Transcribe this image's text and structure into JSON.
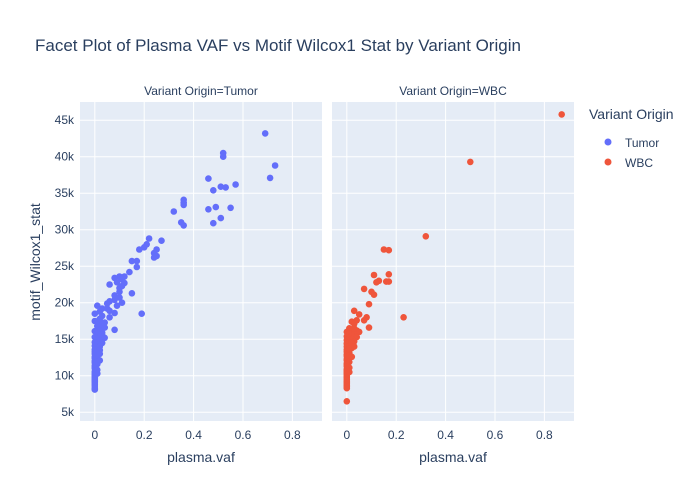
{
  "chart_data": {
    "type": "scatter",
    "title": "Facet Plot of Plasma VAF vs Motif Wilcox1 Stat by Variant Origin",
    "xlabel": "plasma.vaf",
    "ylabel": "motif_Wilcox1_stat",
    "xlim": [
      -0.06,
      0.92
    ],
    "ylim": [
      3800,
      47500
    ],
    "x_ticks": [
      0,
      0.2,
      0.4,
      0.6,
      0.8
    ],
    "x_tick_labels": [
      "0",
      "0.2",
      "0.4",
      "0.6",
      "0.8"
    ],
    "y_ticks": [
      5000,
      10000,
      15000,
      20000,
      25000,
      30000,
      35000,
      40000,
      45000
    ],
    "y_tick_labels": [
      "5k",
      "10k",
      "15k",
      "20k",
      "25k",
      "30k",
      "35k",
      "40k",
      "45k"
    ],
    "grid": true,
    "legend": {
      "title": "Variant Origin",
      "placement": "top-right"
    },
    "colors": {
      "Tumor": "#636efa",
      "WBC": "#ef553b",
      "plot_bg": "#e5ecf6",
      "grid": "#ffffff"
    },
    "facets": [
      {
        "label": "Variant Origin=Tumor",
        "series": [
          {
            "name": "Tumor",
            "points": [
              [
                0.69,
                43200
              ],
              [
                0.73,
                38800
              ],
              [
                0.71,
                37100
              ],
              [
                0.52,
                40500
              ],
              [
                0.52,
                40000
              ],
              [
                0.46,
                37000
              ],
              [
                0.51,
                35900
              ],
              [
                0.53,
                35800
              ],
              [
                0.48,
                35400
              ],
              [
                0.57,
                36200
              ],
              [
                0.36,
                34100
              ],
              [
                0.36,
                33700
              ],
              [
                0.36,
                33400
              ],
              [
                0.32,
                32500
              ],
              [
                0.46,
                32800
              ],
              [
                0.49,
                33100
              ],
              [
                0.55,
                33000
              ],
              [
                0.51,
                31600
              ],
              [
                0.48,
                30900
              ],
              [
                0.35,
                31000
              ],
              [
                0.36,
                30600
              ],
              [
                0.27,
                28500
              ],
              [
                0.22,
                28800
              ],
              [
                0.21,
                28000
              ],
              [
                0.25,
                27300
              ],
              [
                0.2,
                27600
              ],
              [
                0.18,
                27300
              ],
              [
                0.24,
                26800
              ],
              [
                0.25,
                26400
              ],
              [
                0.24,
                26200
              ],
              [
                0.17,
                25700
              ],
              [
                0.15,
                25700
              ],
              [
                0.17,
                24900
              ],
              [
                0.14,
                24200
              ],
              [
                0.1,
                23600
              ],
              [
                0.12,
                23600
              ],
              [
                0.08,
                23400
              ],
              [
                0.11,
                23200
              ],
              [
                0.09,
                22800
              ],
              [
                0.12,
                22700
              ],
              [
                0.11,
                22300
              ],
              [
                0.06,
                22500
              ],
              [
                0.1,
                22000
              ],
              [
                0.1,
                21500
              ],
              [
                0.15,
                21300
              ],
              [
                0.08,
                21000
              ],
              [
                0.1,
                20700
              ],
              [
                0.08,
                20400
              ],
              [
                0.06,
                20200
              ],
              [
                0.05,
                19900
              ],
              [
                0.11,
                20000
              ],
              [
                0.09,
                19600
              ],
              [
                0.01,
                19600
              ],
              [
                0.03,
                19200
              ],
              [
                0.05,
                19200
              ],
              [
                0.06,
                18900
              ],
              [
                0.02,
                18800
              ],
              [
                0.08,
                18600
              ],
              [
                0.19,
                18500
              ],
              [
                0.0,
                18500
              ],
              [
                0.03,
                18200
              ],
              [
                0.06,
                18000
              ],
              [
                0.02,
                17800
              ],
              [
                0.0,
                17500
              ],
              [
                0.01,
                17400
              ],
              [
                0.04,
                17300
              ],
              [
                0.03,
                17000
              ],
              [
                0.01,
                16800
              ],
              [
                0.04,
                16600
              ],
              [
                0.08,
                16300
              ],
              [
                0.02,
                16300
              ],
              [
                0.0,
                16100
              ],
              [
                0.03,
                15900
              ],
              [
                0.01,
                15800
              ],
              [
                0.03,
                15600
              ],
              [
                0.02,
                15400
              ],
              [
                0.0,
                15300
              ],
              [
                0.04,
                15200
              ],
              [
                0.01,
                15000
              ],
              [
                0.02,
                14800
              ],
              [
                0.0,
                14600
              ],
              [
                0.03,
                14500
              ],
              [
                0.01,
                14300
              ],
              [
                0.0,
                14100
              ],
              [
                0.02,
                14000
              ],
              [
                0.01,
                13800
              ],
              [
                0.0,
                13600
              ],
              [
                0.02,
                13500
              ],
              [
                0.0,
                13300
              ],
              [
                0.01,
                13200
              ],
              [
                0.0,
                13000
              ],
              [
                0.01,
                12800
              ],
              [
                0.0,
                12600
              ],
              [
                0.0,
                12400
              ],
              [
                0.01,
                12200
              ],
              [
                0.0,
                12000
              ],
              [
                0.0,
                11800
              ],
              [
                0.01,
                11600
              ],
              [
                0.0,
                11400
              ],
              [
                0.0,
                11200
              ],
              [
                0.0,
                11000
              ],
              [
                0.01,
                10800
              ],
              [
                0.0,
                10600
              ],
              [
                0.0,
                10400
              ],
              [
                0.0,
                10200
              ],
              [
                0.0,
                10000
              ],
              [
                0.0,
                9800
              ],
              [
                0.0,
                9600
              ],
              [
                0.0,
                9400
              ],
              [
                0.0,
                9200
              ],
              [
                0.0,
                9000
              ],
              [
                0.0,
                8800
              ],
              [
                0.0,
                8600
              ],
              [
                0.0,
                8300
              ],
              [
                0.0,
                8100
              ],
              [
                0.01,
                12500
              ],
              [
                0.01,
                11900
              ],
              [
                0.01,
                10300
              ],
              [
                0.02,
                13000
              ],
              [
                0.02,
                12100
              ]
            ]
          }
        ]
      },
      {
        "label": "Variant Origin=WBC",
        "series": [
          {
            "name": "WBC",
            "points": [
              [
                0.87,
                45800
              ],
              [
                0.5,
                39300
              ],
              [
                0.32,
                29100
              ],
              [
                0.15,
                27300
              ],
              [
                0.17,
                27200
              ],
              [
                0.11,
                23800
              ],
              [
                0.17,
                23900
              ],
              [
                0.13,
                23000
              ],
              [
                0.12,
                22800
              ],
              [
                0.16,
                22900
              ],
              [
                0.17,
                22900
              ],
              [
                0.07,
                21900
              ],
              [
                0.1,
                21500
              ],
              [
                0.11,
                21100
              ],
              [
                0.09,
                19800
              ],
              [
                0.23,
                18000
              ],
              [
                0.03,
                18900
              ],
              [
                0.05,
                18400
              ],
              [
                0.08,
                18000
              ],
              [
                0.04,
                17600
              ],
              [
                0.07,
                17600
              ],
              [
                0.02,
                17400
              ],
              [
                0.03,
                17100
              ],
              [
                0.09,
                16600
              ],
              [
                0.01,
                16500
              ],
              [
                0.02,
                16300
              ],
              [
                0.04,
                16200
              ],
              [
                0.05,
                16000
              ],
              [
                0.0,
                16000
              ],
              [
                0.01,
                15800
              ],
              [
                0.03,
                15700
              ],
              [
                0.02,
                15500
              ],
              [
                0.0,
                15400
              ],
              [
                0.04,
                15300
              ],
              [
                0.01,
                15200
              ],
              [
                0.02,
                15000
              ],
              [
                0.0,
                14900
              ],
              [
                0.03,
                14700
              ],
              [
                0.01,
                14600
              ],
              [
                0.0,
                14400
              ],
              [
                0.02,
                14300
              ],
              [
                0.01,
                14100
              ],
              [
                0.0,
                14000
              ],
              [
                0.02,
                13800
              ],
              [
                0.0,
                13600
              ],
              [
                0.01,
                13500
              ],
              [
                0.0,
                13300
              ],
              [
                0.01,
                13100
              ],
              [
                0.0,
                12900
              ],
              [
                0.0,
                12700
              ],
              [
                0.01,
                12500
              ],
              [
                0.0,
                12300
              ],
              [
                0.0,
                12100
              ],
              [
                0.01,
                11900
              ],
              [
                0.0,
                11700
              ],
              [
                0.0,
                11500
              ],
              [
                0.0,
                11300
              ],
              [
                0.01,
                11100
              ],
              [
                0.0,
                10900
              ],
              [
                0.0,
                10700
              ],
              [
                0.0,
                10500
              ],
              [
                0.0,
                10300
              ],
              [
                0.0,
                10100
              ],
              [
                0.0,
                9900
              ],
              [
                0.0,
                9700
              ],
              [
                0.0,
                9500
              ],
              [
                0.0,
                9300
              ],
              [
                0.0,
                9100
              ],
              [
                0.0,
                8900
              ],
              [
                0.0,
                8700
              ],
              [
                0.0,
                8500
              ],
              [
                0.0,
                8300
              ],
              [
                0.0,
                6500
              ],
              [
                0.01,
                12800
              ],
              [
                0.01,
                13700
              ],
              [
                0.02,
                12600
              ],
              [
                0.02,
                14500
              ],
              [
                0.03,
                16500
              ],
              [
                0.03,
                14000
              ],
              [
                0.01,
                10500
              ]
            ]
          }
        ]
      }
    ]
  }
}
